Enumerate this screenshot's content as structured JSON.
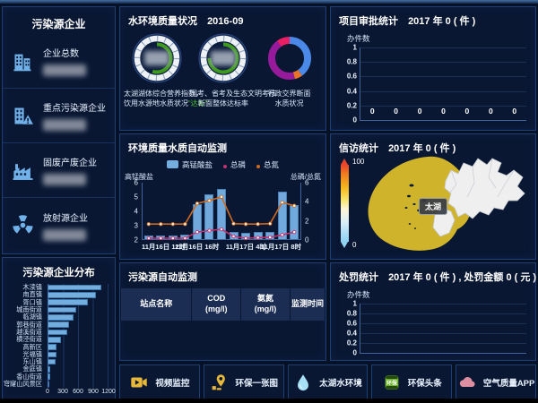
{
  "colors": {
    "accent_blue": "#6fb1e8",
    "bar_blue": "#74aede",
    "line_orange": "#cd6a1f",
    "line_pink": "#c2336e",
    "gauge_green": "#3f9b1e",
    "lake_yellow": "#cfb32b",
    "panel_border": "#1e3f74"
  },
  "left": {
    "enterprises": {
      "title": "污染源企业",
      "stats": [
        {
          "icon": "building-icon",
          "label": "企业总数",
          "value_hidden": true
        },
        {
          "icon": "building-alert-icon",
          "label": "重点污染源企业",
          "value_hidden": true
        },
        {
          "icon": "factory-icon",
          "label": "固废产废企业",
          "value_hidden": true
        },
        {
          "icon": "radiation-icon",
          "label": "放射源企业",
          "value_hidden": true
        }
      ]
    },
    "distribution": {
      "title": "污染源企业分布",
      "chart_data": {
        "type": "bar",
        "orientation": "horizontal",
        "categories": [
          "木渎镇",
          "甪直镇",
          "胥口镇",
          "城南街道",
          "临湖镇",
          "郭巷街道",
          "越溪街道",
          "横泾街道",
          "高新区",
          "光福镇",
          "东山镇",
          "金庭镇",
          "香山街道",
          "穹窿山风景区"
        ],
        "values": [
          1060,
          950,
          790,
          560,
          520,
          430,
          390,
          260,
          185,
          175,
          165,
          60,
          55,
          25
        ],
        "xticks": [
          "0",
          "300",
          "600",
          "900",
          "1200"
        ],
        "xlim": [
          0,
          1200
        ]
      }
    }
  },
  "water_status": {
    "title": "水环境质量状况",
    "date": "2016-09",
    "gauges": [
      {
        "caption_line1": "太湖湖体综合营养指数，",
        "caption_line2": "饮用水源地水质状况",
        "caption_highlight": "“达标”",
        "arc_pct": 55,
        "value_hidden": true
      },
      {
        "caption_line1": "国考、省考及生态文明考核",
        "caption_line2": "断面整体达标率",
        "caption_highlight": "",
        "arc_pct": 75,
        "value_hidden": true
      }
    ],
    "donut": {
      "caption_line1": "行政交界断面",
      "caption_line2": "水质状况",
      "chart_data": {
        "type": "pie",
        "slices": [
          {
            "color": "#4a89e8",
            "pct": 40
          },
          {
            "color": "#e8732a",
            "pct": 6
          },
          {
            "color": "#951b9b",
            "pct": 44
          },
          {
            "color": "#e91e63",
            "pct": 10
          }
        ]
      }
    }
  },
  "water_auto": {
    "title": "环境质量水质自动监测",
    "chart_data": {
      "type": "bar+line",
      "legend": [
        "高锰酸盐",
        "总磷",
        "总氮"
      ],
      "x_tick_labels": [
        "11月16日 12时",
        "11月16日 16时",
        "11月17日 4时",
        "11月17日 8时"
      ],
      "x_tick_positions": [
        0,
        4,
        8,
        12
      ],
      "left_axis": {
        "label": "高锰酸盐",
        "range": [
          2,
          6
        ],
        "ticks": [
          "6",
          "5",
          "4",
          "3",
          "2"
        ]
      },
      "right_axis": {
        "label": "总磷/总氮",
        "range": [
          0,
          6
        ],
        "ticks": [
          "6",
          "4",
          "2",
          "0"
        ]
      },
      "series": [
        {
          "name": "高锰酸盐",
          "type": "bar",
          "axis": "left",
          "color": "#74aede",
          "values": [
            2.25,
            2.25,
            2.25,
            2.3,
            4.5,
            5.2,
            5.55,
            2.5,
            2.45,
            2.5,
            2.5,
            5.35,
            4.4
          ]
        },
        {
          "name": "总磷",
          "type": "line",
          "axis": "right",
          "color": "#c2336e",
          "values": [
            0.1,
            0.1,
            0.1,
            0.1,
            0.75,
            0.9,
            1.05,
            0.3,
            0.1,
            0.15,
            0.2,
            0.45,
            0.75
          ]
        },
        {
          "name": "总氮",
          "type": "line",
          "axis": "right",
          "color": "#cd6a1f",
          "values": [
            1.6,
            1.6,
            1.6,
            1.6,
            3.8,
            4.1,
            4.5,
            1.65,
            1.6,
            1.6,
            1.65,
            3.9,
            3.55
          ]
        }
      ]
    }
  },
  "pollution_table": {
    "title": "污染源自动监测",
    "columns": [
      {
        "line1": "站点名称",
        "line2": ""
      },
      {
        "line1": "COD",
        "line2": "(mg/l)"
      },
      {
        "line1": "氨氮",
        "line2": "(mg/l)"
      },
      {
        "line1": "监测时间",
        "line2": ""
      }
    ],
    "rows": []
  },
  "approval": {
    "title": "项目审批统计",
    "period": "2017 年 0 ( 件 )",
    "chart_data": {
      "type": "line",
      "ylabel": "办件数",
      "yticks": [
        "1",
        "0.8",
        "0.6",
        "0.4",
        "0.2",
        "0"
      ],
      "ylim": [
        0,
        1
      ],
      "values": [
        0,
        0,
        0,
        0,
        0,
        0,
        0
      ]
    }
  },
  "petition": {
    "title": "信访统计",
    "period": "2017 年 0 ( 件 )",
    "legend": {
      "max": "100",
      "min": "0"
    },
    "map_label": "太湖"
  },
  "penalty": {
    "title": "处罚统计",
    "period": "2017 年 0 ( 件 ) , 处罚金额 0 ( 元 )",
    "chart_data": {
      "type": "line",
      "ylabel": "办件数",
      "yticks": [
        "1",
        "0.8",
        "0.6",
        "0.4",
        "0.2",
        "0"
      ],
      "ylim": [
        0,
        1
      ],
      "values": []
    }
  },
  "bottom_bar": {
    "items": [
      {
        "icon": "video-camera-icon",
        "label": "视频监控"
      },
      {
        "icon": "map-pin-icon",
        "label": "环保一张图"
      },
      {
        "icon": "water-drop-icon",
        "label": "太湖水环境"
      },
      {
        "icon": "eco-news-icon",
        "label": "环保头条"
      },
      {
        "icon": "cloud-icon",
        "label": "空气质量APP"
      }
    ]
  }
}
